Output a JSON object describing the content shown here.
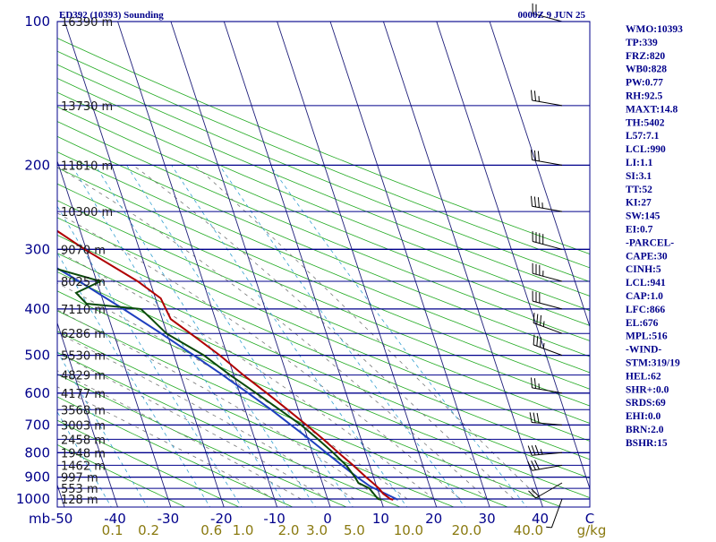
{
  "header": {
    "station": "ED392 (10393) Sounding",
    "time": "0000Z  9 JUN 25"
  },
  "colors": {
    "isobar": "#00008b",
    "isotherm": "#1e1e7a",
    "dry_adiabat": "#22aa22",
    "moist_adiabat": "#777777",
    "mixing_ratio": "#33a0d0",
    "temperature": "#b00000",
    "dewpoint": "#0a4a0a",
    "parcel": "#1f3fbf",
    "wind_barb": "#000000",
    "mixing_ratio_label": "#8a7a10"
  },
  "chart_data": {
    "type": "skew-t log-p sounding",
    "pressure_levels_mb": [
      100,
      200,
      300,
      400,
      500,
      600,
      700,
      800,
      900,
      1000
    ],
    "pressure_labels": [
      "100",
      "200",
      "300",
      "400",
      "500",
      "600",
      "700",
      "800",
      "900",
      "1000"
    ],
    "pressure_unit_label": "mb",
    "temperature_ticks_c": [
      -50,
      -40,
      -30,
      -20,
      -10,
      0,
      10,
      20,
      30,
      40
    ],
    "temperature_tick_labels": [
      "-50",
      "-40",
      "-30",
      "-20",
      "-10",
      "0",
      "10",
      "20",
      "30",
      "40"
    ],
    "temperature_unit_label": "C",
    "mixing_ratio_labels": [
      {
        "label": "0.1",
        "value": 0.1
      },
      {
        "label": "0.2",
        "value": 0.2
      },
      {
        "label": "0.6",
        "value": 0.6
      },
      {
        "label": "1.0",
        "value": 1.0
      },
      {
        "label": "2.0",
        "value": 2.0
      },
      {
        "label": "3.0",
        "value": 3.0
      },
      {
        "label": "5.0",
        "value": 5.0
      },
      {
        "label": "10.0",
        "value": 10.0
      },
      {
        "label": "20.0",
        "value": 20.0
      },
      {
        "label": "40.0",
        "value": 40.0
      }
    ],
    "mixing_ratio_unit_label": "g/kg",
    "height_labels": [
      {
        "p": 100,
        "label": "16390 m"
      },
      {
        "p": 150,
        "label": "13730 m"
      },
      {
        "p": 200,
        "label": "11810 m"
      },
      {
        "p": 250,
        "label": "10300 m"
      },
      {
        "p": 300,
        "label": "9070 m"
      },
      {
        "p": 350,
        "label": "8025 m"
      },
      {
        "p": 400,
        "label": "7110 m"
      },
      {
        "p": 450,
        "label": "6286 m"
      },
      {
        "p": 500,
        "label": "5530 m"
      },
      {
        "p": 550,
        "label": "4829 m"
      },
      {
        "p": 600,
        "label": "4177 m"
      },
      {
        "p": 650,
        "label": "3568 m"
      },
      {
        "p": 700,
        "label": "3003 m"
      },
      {
        "p": 750,
        "label": "2458 m"
      },
      {
        "p": 800,
        "label": "1948 m"
      },
      {
        "p": 850,
        "label": "1462 m"
      },
      {
        "p": 900,
        "label": "997 m"
      },
      {
        "p": 950,
        "label": "553 m"
      },
      {
        "p": 1000,
        "label": "128 m"
      }
    ],
    "temperature_profile": [
      {
        "p": 1004,
        "t": 12.3
      },
      {
        "p": 1000,
        "t": 11.8
      },
      {
        "p": 975,
        "t": 10.8
      },
      {
        "p": 950,
        "t": 10.3
      },
      {
        "p": 925,
        "t": 9.5
      },
      {
        "p": 900,
        "t": 8.6
      },
      {
        "p": 850,
        "t": 6.9
      },
      {
        "p": 800,
        "t": 4.9
      },
      {
        "p": 750,
        "t": 2.9
      },
      {
        "p": 700,
        "t": 0.6
      },
      {
        "p": 650,
        "t": -2.0
      },
      {
        "p": 600,
        "t": -4.9
      },
      {
        "p": 550,
        "t": -8.2
      },
      {
        "p": 500,
        "t": -11.4
      },
      {
        "p": 450,
        "t": -15.6
      },
      {
        "p": 420,
        "t": -18.4
      },
      {
        "p": 400,
        "t": -18.7
      },
      {
        "p": 380,
        "t": -19.0
      },
      {
        "p": 350,
        "t": -22.3
      },
      {
        "p": 300,
        "t": -30.3
      },
      {
        "p": 250,
        "t": -38.6
      },
      {
        "p": 200,
        "t": -50.2
      },
      {
        "p": 150,
        "t": -61.8
      },
      {
        "p": 120,
        "t": -68.3
      },
      {
        "p": 100,
        "t": -71.6
      }
    ],
    "dewpoint_profile": [
      {
        "p": 1004,
        "td": 10.1
      },
      {
        "p": 1000,
        "td": 9.5
      },
      {
        "p": 950,
        "td": 8.5
      },
      {
        "p": 925,
        "td": 6.8
      },
      {
        "p": 900,
        "td": 6.5
      },
      {
        "p": 850,
        "td": 5.6
      },
      {
        "p": 800,
        "td": 3.9
      },
      {
        "p": 750,
        "td": 1.9
      },
      {
        "p": 700,
        "td": -0.4
      },
      {
        "p": 650,
        "td": -3.5
      },
      {
        "p": 600,
        "td": -6.9
      },
      {
        "p": 550,
        "td": -10.7
      },
      {
        "p": 500,
        "td": -14.4
      },
      {
        "p": 450,
        "td": -20.1
      },
      {
        "p": 420,
        "td": -22.0
      },
      {
        "p": 400,
        "td": -23.4
      },
      {
        "p": 390,
        "td": -33.3
      },
      {
        "p": 370,
        "td": -34.6
      },
      {
        "p": 350,
        "td": -29.3
      },
      {
        "p": 330,
        "td": -36.6
      },
      {
        "p": 300,
        "td": -48.5
      },
      {
        "p": 250,
        "td": -56.4
      },
      {
        "p": 240,
        "td": -60.1
      },
      {
        "p": 200,
        "td": -65.5
      },
      {
        "p": 150,
        "td": -74.2
      },
      {
        "p": 100,
        "td": -80.7
      }
    ],
    "parcel_profile": [
      {
        "p": 1004,
        "t": 13.2
      },
      {
        "p": 960,
        "t": 10.2
      },
      {
        "p": 941,
        "t": 8.8
      },
      {
        "p": 900,
        "t": 6.9
      },
      {
        "p": 850,
        "t": 4.8
      },
      {
        "p": 800,
        "t": 2.6
      },
      {
        "p": 750,
        "t": 0.3
      },
      {
        "p": 700,
        "t": -2.3
      },
      {
        "p": 650,
        "t": -5.1
      },
      {
        "p": 600,
        "t": -8.4
      },
      {
        "p": 550,
        "t": -12.1
      },
      {
        "p": 500,
        "t": -16.3
      },
      {
        "p": 450,
        "t": -21.1
      },
      {
        "p": 400,
        "t": -26.7
      },
      {
        "p": 350,
        "t": -33.3
      },
      {
        "p": 300,
        "t": -41.5
      },
      {
        "p": 250,
        "t": -51.1
      },
      {
        "p": 200,
        "t": -62.5
      },
      {
        "p": 150,
        "t": -76.4
      },
      {
        "p": 100,
        "t": -95.2
      }
    ],
    "winds": [
      {
        "p": 1000,
        "dir": 200,
        "spd": 5
      },
      {
        "p": 925,
        "dir": 240,
        "spd": 20
      },
      {
        "p": 850,
        "dir": 260,
        "spd": 30
      },
      {
        "p": 800,
        "dir": 265,
        "spd": 35
      },
      {
        "p": 700,
        "dir": 275,
        "spd": 30
      },
      {
        "p": 600,
        "dir": 280,
        "spd": 25
      },
      {
        "p": 500,
        "dir": 290,
        "spd": 35
      },
      {
        "p": 450,
        "dir": 290,
        "spd": 35
      },
      {
        "p": 400,
        "dir": 285,
        "spd": 30
      },
      {
        "p": 350,
        "dir": 285,
        "spd": 35
      },
      {
        "p": 300,
        "dir": 285,
        "spd": 40
      },
      {
        "p": 250,
        "dir": 280,
        "spd": 35
      },
      {
        "p": 200,
        "dir": 280,
        "spd": 30
      },
      {
        "p": 150,
        "dir": 280,
        "spd": 25
      },
      {
        "p": 100,
        "dir": 285,
        "spd": 20
      }
    ],
    "grid": true
  },
  "indices": [
    "WMO:10393",
    "TP:339",
    "FRZ:820",
    "WB0:828",
    "PW:0.77",
    "RH:92.5",
    "MAXT:14.8",
    "TH:5402",
    "L57:7.1",
    "LCL:990",
    "LI:1.1",
    "SI:3.1",
    "TT:52",
    "KI:27",
    "SW:145",
    "EI:0.7",
    "-PARCEL-",
    "CAPE:30",
    "CINH:5",
    "LCL:941",
    "CAP:1.0",
    "LFC:866",
    "EL:676",
    "MPL:516",
    "-WIND-",
    "STM:319/19",
    "HEL:62",
    "SHR+:0.0",
    "SRDS:69",
    "EHI:0.0",
    "BRN:2.0",
    "BSHR:15"
  ]
}
